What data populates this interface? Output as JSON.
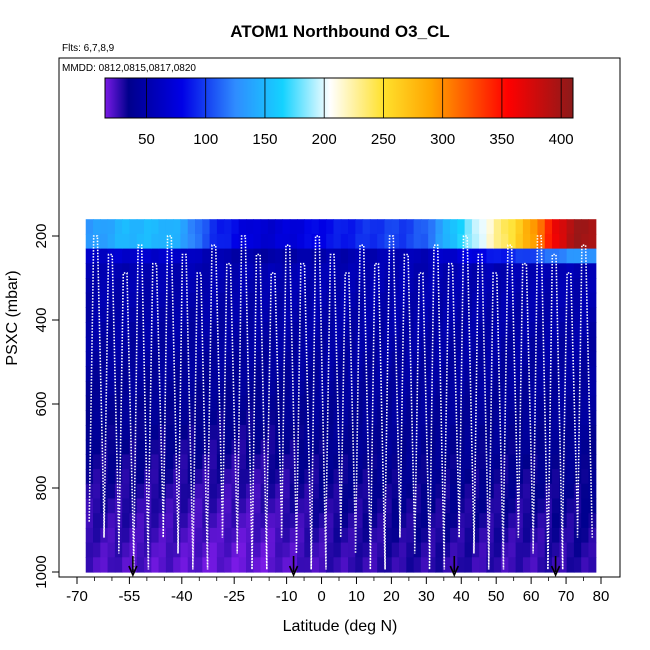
{
  "chart_data": {
    "type": "heatmap",
    "title": "ATOM1 Northbound O3_CL",
    "flights_note": "Flts: 6,7,8,9",
    "dates_note": "MMDD: 0812,0815,0817,0820",
    "xlabel": "Latitude (deg N)",
    "ylabel": "PSXC (mbar)",
    "xlim": [
      -70,
      82
    ],
    "ylim": [
      1000,
      140
    ],
    "x_ticks": [
      -70,
      -55,
      -40,
      -25,
      -10,
      0,
      10,
      20,
      30,
      40,
      50,
      60,
      70,
      80
    ],
    "x_tick_labels": [
      "-70",
      "-55",
      "-40",
      "-25",
      "-10",
      "0",
      "10",
      "20",
      "30",
      "40",
      "50",
      "60",
      "70",
      "80"
    ],
    "y_ticks": [
      200,
      400,
      600,
      800,
      1000
    ],
    "y_tick_labels": [
      "200",
      "400",
      "600",
      "800",
      "1000"
    ],
    "colorbar": {
      "min": 15,
      "max": 410,
      "ticks": [
        50,
        100,
        150,
        200,
        250,
        300,
        350,
        400
      ],
      "tick_labels": [
        "50",
        "100",
        "150",
        "200",
        "250",
        "300",
        "350",
        "400"
      ],
      "stops": [
        {
          "v": 15,
          "c": "#7a1ae6"
        },
        {
          "v": 35,
          "c": "#00008c"
        },
        {
          "v": 80,
          "c": "#0000e6"
        },
        {
          "v": 125,
          "c": "#2f8cff"
        },
        {
          "v": 165,
          "c": "#14d2ff"
        },
        {
          "v": 205,
          "c": "#ffffff"
        },
        {
          "v": 250,
          "c": "#ffe12d"
        },
        {
          "v": 290,
          "c": "#ffa500"
        },
        {
          "v": 320,
          "c": "#ff5a00"
        },
        {
          "v": 355,
          "c": "#ff0000"
        },
        {
          "v": 410,
          "c": "#8c1a1a"
        }
      ]
    },
    "surface_ozone": [
      22,
      22,
      22,
      21,
      20,
      20,
      19,
      18,
      18,
      17,
      17,
      18,
      20,
      22,
      24,
      25,
      26,
      26,
      27,
      28,
      28,
      28,
      27,
      27,
      26,
      26,
      25,
      25,
      26,
      27,
      28,
      28
    ],
    "upper_ozone": [
      130,
      140,
      150,
      150,
      150,
      140,
      110,
      90,
      80,
      70,
      70,
      75,
      80,
      85,
      90,
      95,
      100,
      100,
      110,
      140,
      170,
      200,
      230,
      260,
      300,
      360,
      400,
      400
    ],
    "arrow_latitudes": [
      -54,
      -8,
      38,
      67
    ]
  }
}
